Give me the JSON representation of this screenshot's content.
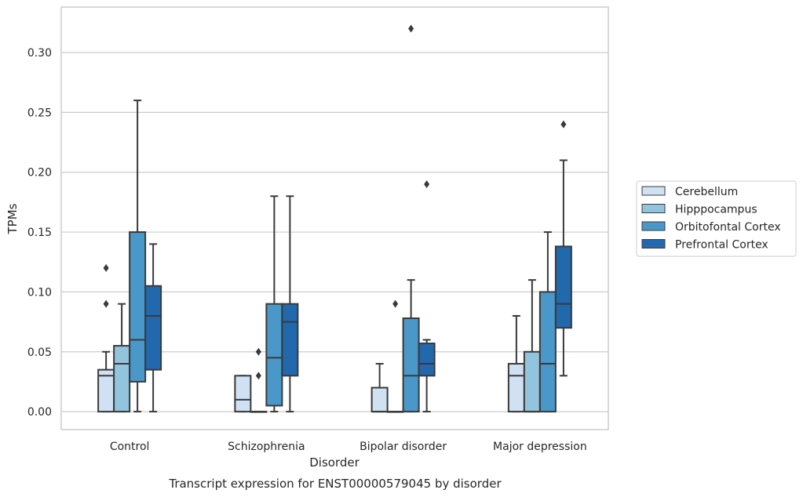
{
  "chart_data": {
    "type": "box",
    "title": "",
    "caption": "Transcript expression for ENST00000579045 by disorder",
    "xlabel": "Disorder",
    "ylabel": "TPMs",
    "ylim": [
      -0.015,
      0.338
    ],
    "yticks": [
      "0.00",
      "0.05",
      "0.10",
      "0.15",
      "0.20",
      "0.25",
      "0.30"
    ],
    "grid": "horizontal",
    "legend_position": "right",
    "categories": [
      "Control",
      "Schizophrenia",
      "Bipolar disorder",
      "Major depression"
    ],
    "series": [
      {
        "name": "Cerebellum",
        "color": "#cfe1f2",
        "boxes": [
          {
            "q1": 0.0,
            "median": 0.03,
            "q3": 0.035,
            "whisker_low": 0.0,
            "whisker_high": 0.05,
            "outliers": [
              0.09,
              0.12
            ]
          },
          {
            "q1": 0.0,
            "median": 0.01,
            "q3": 0.03,
            "whisker_low": 0.0,
            "whisker_high": 0.03,
            "outliers": []
          },
          {
            "q1": 0.0,
            "median": 0.0,
            "q3": 0.02,
            "whisker_low": 0.0,
            "whisker_high": 0.04,
            "outliers": []
          },
          {
            "q1": 0.0,
            "median": 0.03,
            "q3": 0.04,
            "whisker_low": 0.0,
            "whisker_high": 0.08,
            "outliers": []
          }
        ]
      },
      {
        "name": "Hipppocampus",
        "color": "#93c4de",
        "boxes": [
          {
            "q1": 0.0,
            "median": 0.04,
            "q3": 0.055,
            "whisker_low": 0.0,
            "whisker_high": 0.09,
            "outliers": []
          },
          {
            "q1": 0.0,
            "median": 0.0,
            "q3": 0.0,
            "whisker_low": 0.0,
            "whisker_high": 0.0,
            "outliers": [
              0.03,
              0.05
            ]
          },
          {
            "q1": 0.0,
            "median": 0.0,
            "q3": 0.0,
            "whisker_low": 0.0,
            "whisker_high": 0.0,
            "outliers": [
              0.09
            ]
          },
          {
            "q1": 0.0,
            "median": 0.0,
            "q3": 0.05,
            "whisker_low": 0.0,
            "whisker_high": 0.11,
            "outliers": []
          }
        ]
      },
      {
        "name": "Orbitofontal Cortex",
        "color": "#4a98c9",
        "boxes": [
          {
            "q1": 0.025,
            "median": 0.06,
            "q3": 0.15,
            "whisker_low": 0.0,
            "whisker_high": 0.26,
            "outliers": []
          },
          {
            "q1": 0.005,
            "median": 0.045,
            "q3": 0.09,
            "whisker_low": 0.0,
            "whisker_high": 0.18,
            "outliers": []
          },
          {
            "q1": 0.0,
            "median": 0.03,
            "q3": 0.078,
            "whisker_low": 0.0,
            "whisker_high": 0.11,
            "outliers": [
              0.32
            ]
          },
          {
            "q1": 0.0,
            "median": 0.04,
            "q3": 0.1,
            "whisker_low": 0.0,
            "whisker_high": 0.15,
            "outliers": []
          }
        ]
      },
      {
        "name": "Prefrontal Cortex",
        "color": "#2268ad",
        "boxes": [
          {
            "q1": 0.035,
            "median": 0.08,
            "q3": 0.105,
            "whisker_low": 0.0,
            "whisker_high": 0.14,
            "outliers": []
          },
          {
            "q1": 0.03,
            "median": 0.075,
            "q3": 0.09,
            "whisker_low": 0.0,
            "whisker_high": 0.18,
            "outliers": []
          },
          {
            "q1": 0.03,
            "median": 0.04,
            "q3": 0.057,
            "whisker_low": 0.0,
            "whisker_high": 0.06,
            "outliers": [
              0.19
            ]
          },
          {
            "q1": 0.07,
            "median": 0.09,
            "q3": 0.138,
            "whisker_low": 0.03,
            "whisker_high": 0.21,
            "outliers": [
              0.24
            ]
          }
        ]
      }
    ]
  }
}
